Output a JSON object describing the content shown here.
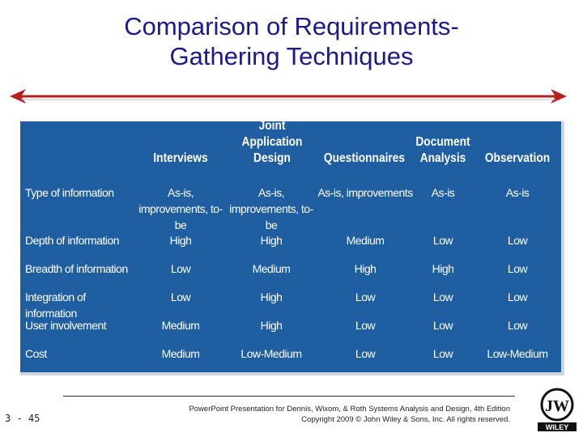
{
  "slide": {
    "title_line1": "Comparison of Requirements-",
    "title_line2": "Gathering Techniques",
    "page_number": "3 - 45",
    "footer_line1": "PowerPoint Presentation for Dennis, Wixom, & Roth Systems Analysis and Design, 4th Edition",
    "footer_line2": "Copyright 2009 © John Wiley & Sons, Inc. All rights reserved.",
    "logo_text": "WILEY"
  },
  "table": {
    "headers": [
      {
        "line1": "",
        "line2": "Interviews"
      },
      {
        "line1": "Joint Application",
        "line2": "Design"
      },
      {
        "line1": "",
        "line2": "Questionnaires"
      },
      {
        "line1": "Document",
        "line2": "Analysis"
      },
      {
        "line1": "",
        "line2": "Observation"
      }
    ],
    "rows": [
      {
        "label": "Type of information",
        "cells": [
          "As-is, improvements, to-be",
          "As-is, improvements, to-be",
          "As-is, improvements",
          "As-is",
          "As-is"
        ]
      },
      {
        "label": "Depth of information",
        "cells": [
          "High",
          "High",
          "Medium",
          "Low",
          "Low"
        ]
      },
      {
        "label": "Breadth of information",
        "cells": [
          "Low",
          "Medium",
          "High",
          "High",
          "Low"
        ]
      },
      {
        "label": "Integration of information",
        "cells": [
          "Low",
          "High",
          "Low",
          "Low",
          "Low"
        ]
      },
      {
        "label": "User involvement",
        "cells": [
          "Medium",
          "High",
          "Low",
          "Low",
          "Low"
        ]
      },
      {
        "label": "Cost",
        "cells": [
          "Medium",
          "Low-Medium",
          "Low",
          "Low",
          "Low-Medium"
        ]
      }
    ]
  },
  "colors": {
    "title": "#1a1a8c",
    "table_bg": "#1f5ea0",
    "arrow": "#b52020"
  }
}
